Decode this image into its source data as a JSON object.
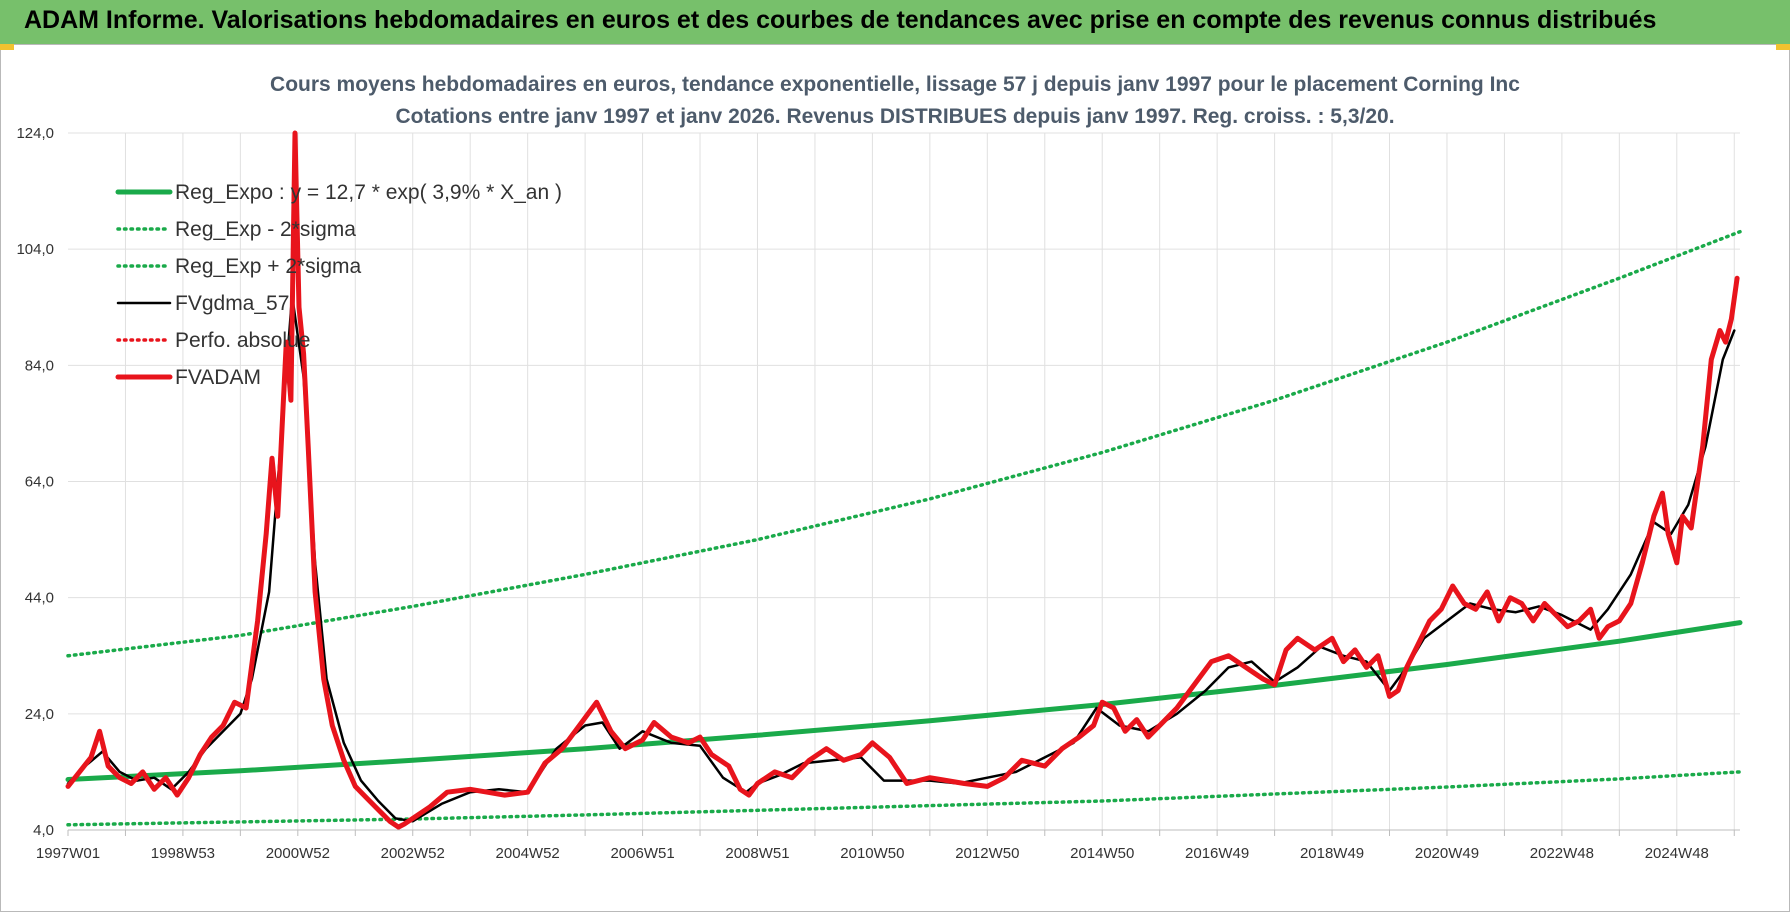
{
  "banner": {
    "title": "ADAM Informe. Valorisations hebdomadaires en euros et des courbes de tendances avec prise en compte des revenus connus distribués"
  },
  "colors": {
    "banner": "#77c06b",
    "regression": "#1aaa4a",
    "black": "#000000",
    "red": "#e8141c",
    "grid": "#e0e0e0"
  },
  "chart_data": {
    "type": "line",
    "title": "Cours moyens hebdomadaires en euros, tendance exponentielle, lissage 57 j depuis janv 1997  pour le placement Corning Inc",
    "subtitle": "Cotations entre janv 1997 et janv 2026. Revenus DISTRIBUES depuis janv 1997. Reg. croiss. : 5,3/20.",
    "xlabel": "",
    "ylabel": "",
    "ylim": [
      4,
      124
    ],
    "xlim": [
      1997.0,
      2026.1
    ],
    "yticks": [
      "4,0",
      "24,0",
      "44,0",
      "64,0",
      "84,0",
      "104,0",
      "124,0"
    ],
    "xticks": [
      {
        "label": "1997W01",
        "x": 1997.0
      },
      {
        "label": "1998W53",
        "x": 1999.0
      },
      {
        "label": "2000W52",
        "x": 2001.0
      },
      {
        "label": "2002W52",
        "x": 2003.0
      },
      {
        "label": "2004W52",
        "x": 2005.0
      },
      {
        "label": "2006W51",
        "x": 2007.0
      },
      {
        "label": "2008W51",
        "x": 2009.0
      },
      {
        "label": "2010W50",
        "x": 2011.0
      },
      {
        "label": "2012W50",
        "x": 2013.0
      },
      {
        "label": "2014W50",
        "x": 2015.0
      },
      {
        "label": "2016W49",
        "x": 2017.0
      },
      {
        "label": "2018W49",
        "x": 2019.0
      },
      {
        "label": "2020W49",
        "x": 2021.0
      },
      {
        "label": "2022W48",
        "x": 2023.0
      },
      {
        "label": "2024W48",
        "x": 2025.0
      }
    ],
    "grid": true,
    "legend_position": "top-left",
    "series": [
      {
        "name": "Reg_Expo : y = 12,7 * exp( 3,9% *  X_an )",
        "style": "solid-thick",
        "color": "#1aaa4a",
        "x": [
          1997.0,
          2000.0,
          2003.0,
          2006.0,
          2009.0,
          2012.0,
          2015.0,
          2018.0,
          2021.0,
          2024.0,
          2026.1
        ],
        "y": [
          12.7,
          14.2,
          16.0,
          18.0,
          20.3,
          22.8,
          25.6,
          28.9,
          32.5,
          36.5,
          39.7
        ]
      },
      {
        "name": "Reg_Exp - 2*sigma",
        "style": "dotted",
        "color": "#1aaa4a",
        "x": [
          1997.0,
          2000.0,
          2003.0,
          2006.0,
          2009.0,
          2012.0,
          2015.0,
          2018.0,
          2021.0,
          2024.0,
          2026.1
        ],
        "y": [
          4.9,
          5.4,
          5.9,
          6.6,
          7.4,
          8.2,
          9.0,
          10.2,
          11.4,
          12.8,
          14.0
        ]
      },
      {
        "name": "Reg_Exp + 2*sigma",
        "style": "dotted",
        "color": "#1aaa4a",
        "x": [
          1997.0,
          2000.0,
          2003.0,
          2006.0,
          2009.0,
          2012.0,
          2015.0,
          2018.0,
          2021.0,
          2024.0,
          2026.1
        ],
        "y": [
          34.0,
          37.5,
          42.5,
          48.0,
          54.0,
          61.0,
          69.0,
          78.0,
          88.0,
          99.0,
          107.0
        ]
      },
      {
        "name": "FVgdma_57",
        "style": "solid",
        "color": "#000000",
        "x": [
          1997.0,
          1997.3,
          1997.6,
          1997.9,
          1998.2,
          1998.5,
          1998.8,
          1999.1,
          1999.4,
          1999.7,
          2000.0,
          2000.2,
          2000.5,
          2000.7,
          2000.9,
          2001.1,
          2001.3,
          2001.5,
          2001.8,
          2002.1,
          2002.4,
          2002.7,
          2003.0,
          2003.5,
          2004.0,
          2004.5,
          2005.0,
          2005.5,
          2006.0,
          2006.3,
          2006.6,
          2007.0,
          2007.5,
          2008.0,
          2008.4,
          2008.8,
          2009.0,
          2009.4,
          2009.8,
          2010.3,
          2010.8,
          2011.2,
          2011.6,
          2012.0,
          2012.5,
          2013.0,
          2013.5,
          2014.0,
          2014.5,
          2014.9,
          2015.3,
          2015.8,
          2016.3,
          2016.8,
          2017.2,
          2017.6,
          2018.0,
          2018.4,
          2018.8,
          2019.2,
          2019.6,
          2020.0,
          2020.3,
          2020.6,
          2021.0,
          2021.4,
          2021.8,
          2022.2,
          2022.6,
          2023.0,
          2023.5,
          2023.8,
          2024.2,
          2024.6,
          2024.9,
          2025.2,
          2025.5,
          2025.8,
          2026.0
        ],
        "y": [
          12.0,
          15.0,
          17.5,
          14.0,
          12.5,
          13.0,
          11.0,
          14.0,
          18.0,
          21.0,
          24.0,
          30.0,
          45.0,
          70.0,
          96.0,
          82.0,
          50.0,
          30.0,
          19.0,
          12.5,
          9.0,
          6.0,
          5.5,
          8.5,
          10.5,
          11.0,
          10.5,
          18.0,
          22.0,
          22.5,
          18.0,
          21.0,
          19.0,
          18.5,
          13.0,
          10.5,
          12.0,
          13.5,
          15.5,
          16.0,
          16.5,
          12.5,
          12.5,
          12.5,
          12.0,
          13.0,
          14.0,
          16.5,
          19.0,
          25.0,
          22.0,
          21.0,
          24.0,
          28.0,
          32.0,
          33.0,
          29.5,
          32.0,
          35.5,
          34.0,
          33.0,
          28.0,
          32.0,
          37.0,
          40.0,
          43.0,
          42.0,
          41.5,
          42.5,
          41.0,
          38.5,
          42.0,
          48.0,
          57.0,
          55.0,
          60.0,
          70.0,
          85.0,
          90.0
        ]
      },
      {
        "name": "Perfo. absolue",
        "style": "dotted",
        "color": "#e8141c",
        "x": [],
        "y": []
      },
      {
        "name": "FVADAM",
        "style": "solid-thick",
        "color": "#e8141c",
        "x": [
          1997.0,
          1997.2,
          1997.4,
          1997.55,
          1997.7,
          1997.9,
          1998.1,
          1998.3,
          1998.5,
          1998.7,
          1998.9,
          1999.1,
          1999.3,
          1999.5,
          1999.7,
          1999.9,
          2000.1,
          2000.3,
          2000.45,
          2000.55,
          2000.65,
          2000.72,
          2000.8,
          2000.88,
          2000.95,
          2001.02,
          2001.1,
          2001.18,
          2001.3,
          2001.45,
          2001.6,
          2001.8,
          2002.0,
          2002.2,
          2002.4,
          2002.6,
          2002.75,
          2002.85,
          2003.0,
          2003.3,
          2003.6,
          2004.0,
          2004.3,
          2004.6,
          2005.0,
          2005.3,
          2005.6,
          2005.9,
          2006.2,
          2006.45,
          2006.7,
          2007.0,
          2007.2,
          2007.5,
          2007.8,
          2008.0,
          2008.2,
          2008.5,
          2008.7,
          2008.85,
          2009.0,
          2009.3,
          2009.6,
          2009.9,
          2010.2,
          2010.5,
          2010.8,
          2011.0,
          2011.3,
          2011.6,
          2012.0,
          2012.3,
          2012.6,
          2013.0,
          2013.3,
          2013.6,
          2014.0,
          2014.3,
          2014.6,
          2014.85,
          2015.0,
          2015.2,
          2015.4,
          2015.6,
          2015.8,
          2016.0,
          2016.3,
          2016.6,
          2016.9,
          2017.2,
          2017.5,
          2017.8,
          2018.0,
          2018.2,
          2018.4,
          2018.7,
          2019.0,
          2019.2,
          2019.4,
          2019.6,
          2019.8,
          2020.0,
          2020.15,
          2020.3,
          2020.5,
          2020.7,
          2020.9,
          2021.1,
          2021.3,
          2021.5,
          2021.7,
          2021.9,
          2022.1,
          2022.3,
          2022.5,
          2022.7,
          2022.9,
          2023.1,
          2023.3,
          2023.5,
          2023.65,
          2023.8,
          2024.0,
          2024.2,
          2024.4,
          2024.6,
          2024.75,
          2024.85,
          2025.0,
          2025.1,
          2025.25,
          2025.45,
          2025.6,
          2025.75,
          2025.85,
          2025.95,
          2026.05
        ],
        "y": [
          11.5,
          14.0,
          16.5,
          21.0,
          15.0,
          13.0,
          12.0,
          14.0,
          11.0,
          13.0,
          10.0,
          13.0,
          17.0,
          20.0,
          22.0,
          26.0,
          25.0,
          40.0,
          55.0,
          68.0,
          58.0,
          72.0,
          88.0,
          78.0,
          124.0,
          94.0,
          86.0,
          70.0,
          45.0,
          30.0,
          22.0,
          16.0,
          11.5,
          9.5,
          7.5,
          5.5,
          4.5,
          5.0,
          6.0,
          8.0,
          10.5,
          11.0,
          10.5,
          10.0,
          10.5,
          15.5,
          18.0,
          22.0,
          26.0,
          21.0,
          18.0,
          19.5,
          22.5,
          20.0,
          19.0,
          20.0,
          17.0,
          15.0,
          11.0,
          10.0,
          12.0,
          14.0,
          13.0,
          16.0,
          18.0,
          16.0,
          17.0,
          19.0,
          16.5,
          12.0,
          13.0,
          12.5,
          12.0,
          11.5,
          13.0,
          16.0,
          15.0,
          18.0,
          20.0,
          22.0,
          26.0,
          25.0,
          21.0,
          23.0,
          20.0,
          22.0,
          25.0,
          29.0,
          33.0,
          34.0,
          32.0,
          30.0,
          29.0,
          35.0,
          37.0,
          35.0,
          37.0,
          33.0,
          35.0,
          32.0,
          34.0,
          27.0,
          28.0,
          32.0,
          36.0,
          40.0,
          42.0,
          46.0,
          43.0,
          42.0,
          45.0,
          40.0,
          44.0,
          43.0,
          40.0,
          43.0,
          41.0,
          39.0,
          40.0,
          42.0,
          37.0,
          39.0,
          40.0,
          43.0,
          50.0,
          58.0,
          62.0,
          55.0,
          50.0,
          58.0,
          56.0,
          70.0,
          85.0,
          90.0,
          88.0,
          92.0,
          99.0
        ]
      }
    ]
  }
}
